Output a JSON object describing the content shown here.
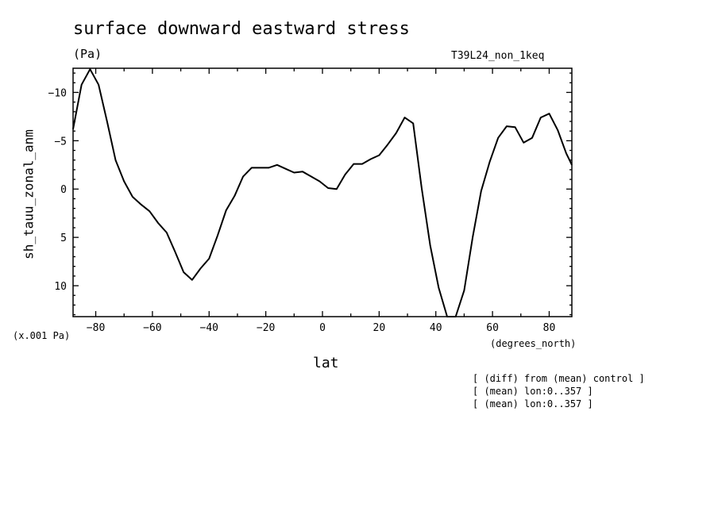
{
  "figure": {
    "title": "surface downward eastward stress",
    "units": "(Pa)",
    "run_id": "T39L24_non_1keq",
    "scale_note": "(x.001 Pa)",
    "notes": [
      "[ (diff) from (mean) control ]",
      "[ (mean) lon:0..357 ]",
      "[ (mean) lon:0..357 ]"
    ]
  },
  "chart_data": {
    "type": "line",
    "title": "surface downward eastward stress",
    "xlabel": "lat",
    "x_units": "(degrees_north)",
    "ylabel": "sh_tauu_zonal_anm",
    "y_units": "(x.001 Pa)",
    "xlim": [
      -88,
      88
    ],
    "ylim": [
      13.2,
      -12.5
    ],
    "y_inverted": true,
    "grid": false,
    "x_ticks": [
      -80,
      -60,
      -40,
      -20,
      0,
      20,
      40,
      60,
      80
    ],
    "x_tick_labels": [
      "−80",
      "−60",
      "−40",
      "−20",
      "0",
      "20",
      "40",
      "60",
      "80"
    ],
    "y_ticks": [
      -10,
      -5,
      0,
      5,
      10
    ],
    "y_tick_labels": [
      "−10",
      "−5",
      "0",
      "5",
      "10"
    ],
    "series": [
      {
        "x": [
          -88,
          -85,
          -82,
          -79,
          -76,
          -73,
          -70,
          -67,
          -64,
          -61,
          -58,
          -55,
          -52,
          -49,
          -46,
          -43,
          -40,
          -37,
          -34,
          -31,
          -28,
          -25,
          -22,
          -19,
          -16,
          -13,
          -10,
          -7,
          -4,
          -1,
          2,
          5,
          8,
          11,
          14,
          17,
          20,
          23,
          26,
          29,
          32,
          35,
          38,
          41,
          44,
          47,
          50,
          53,
          56,
          59,
          62,
          65,
          68,
          71,
          74,
          77,
          80,
          83,
          86,
          88
        ],
        "values": [
          -6.2,
          -10.8,
          -12.4,
          -10.8,
          -7.0,
          -3.0,
          -0.8,
          0.8,
          1.6,
          2.3,
          3.5,
          4.5,
          6.5,
          8.6,
          9.4,
          8.2,
          7.2,
          4.8,
          2.2,
          0.7,
          -1.3,
          -2.2,
          -2.2,
          -2.2,
          -2.5,
          -2.1,
          -1.7,
          -1.8,
          -1.3,
          -0.8,
          -0.1,
          0.0,
          -1.5,
          -2.6,
          -2.6,
          -3.1,
          -3.5,
          -4.6,
          -5.8,
          -7.4,
          -6.8,
          -0.1,
          5.8,
          10.2,
          13.2,
          13.2,
          10.5,
          5.0,
          0.2,
          -2.8,
          -5.3,
          -6.5,
          -6.4,
          -4.8,
          -5.3,
          -7.4,
          -7.8,
          -6.1,
          -3.7,
          -2.5
        ]
      }
    ]
  }
}
